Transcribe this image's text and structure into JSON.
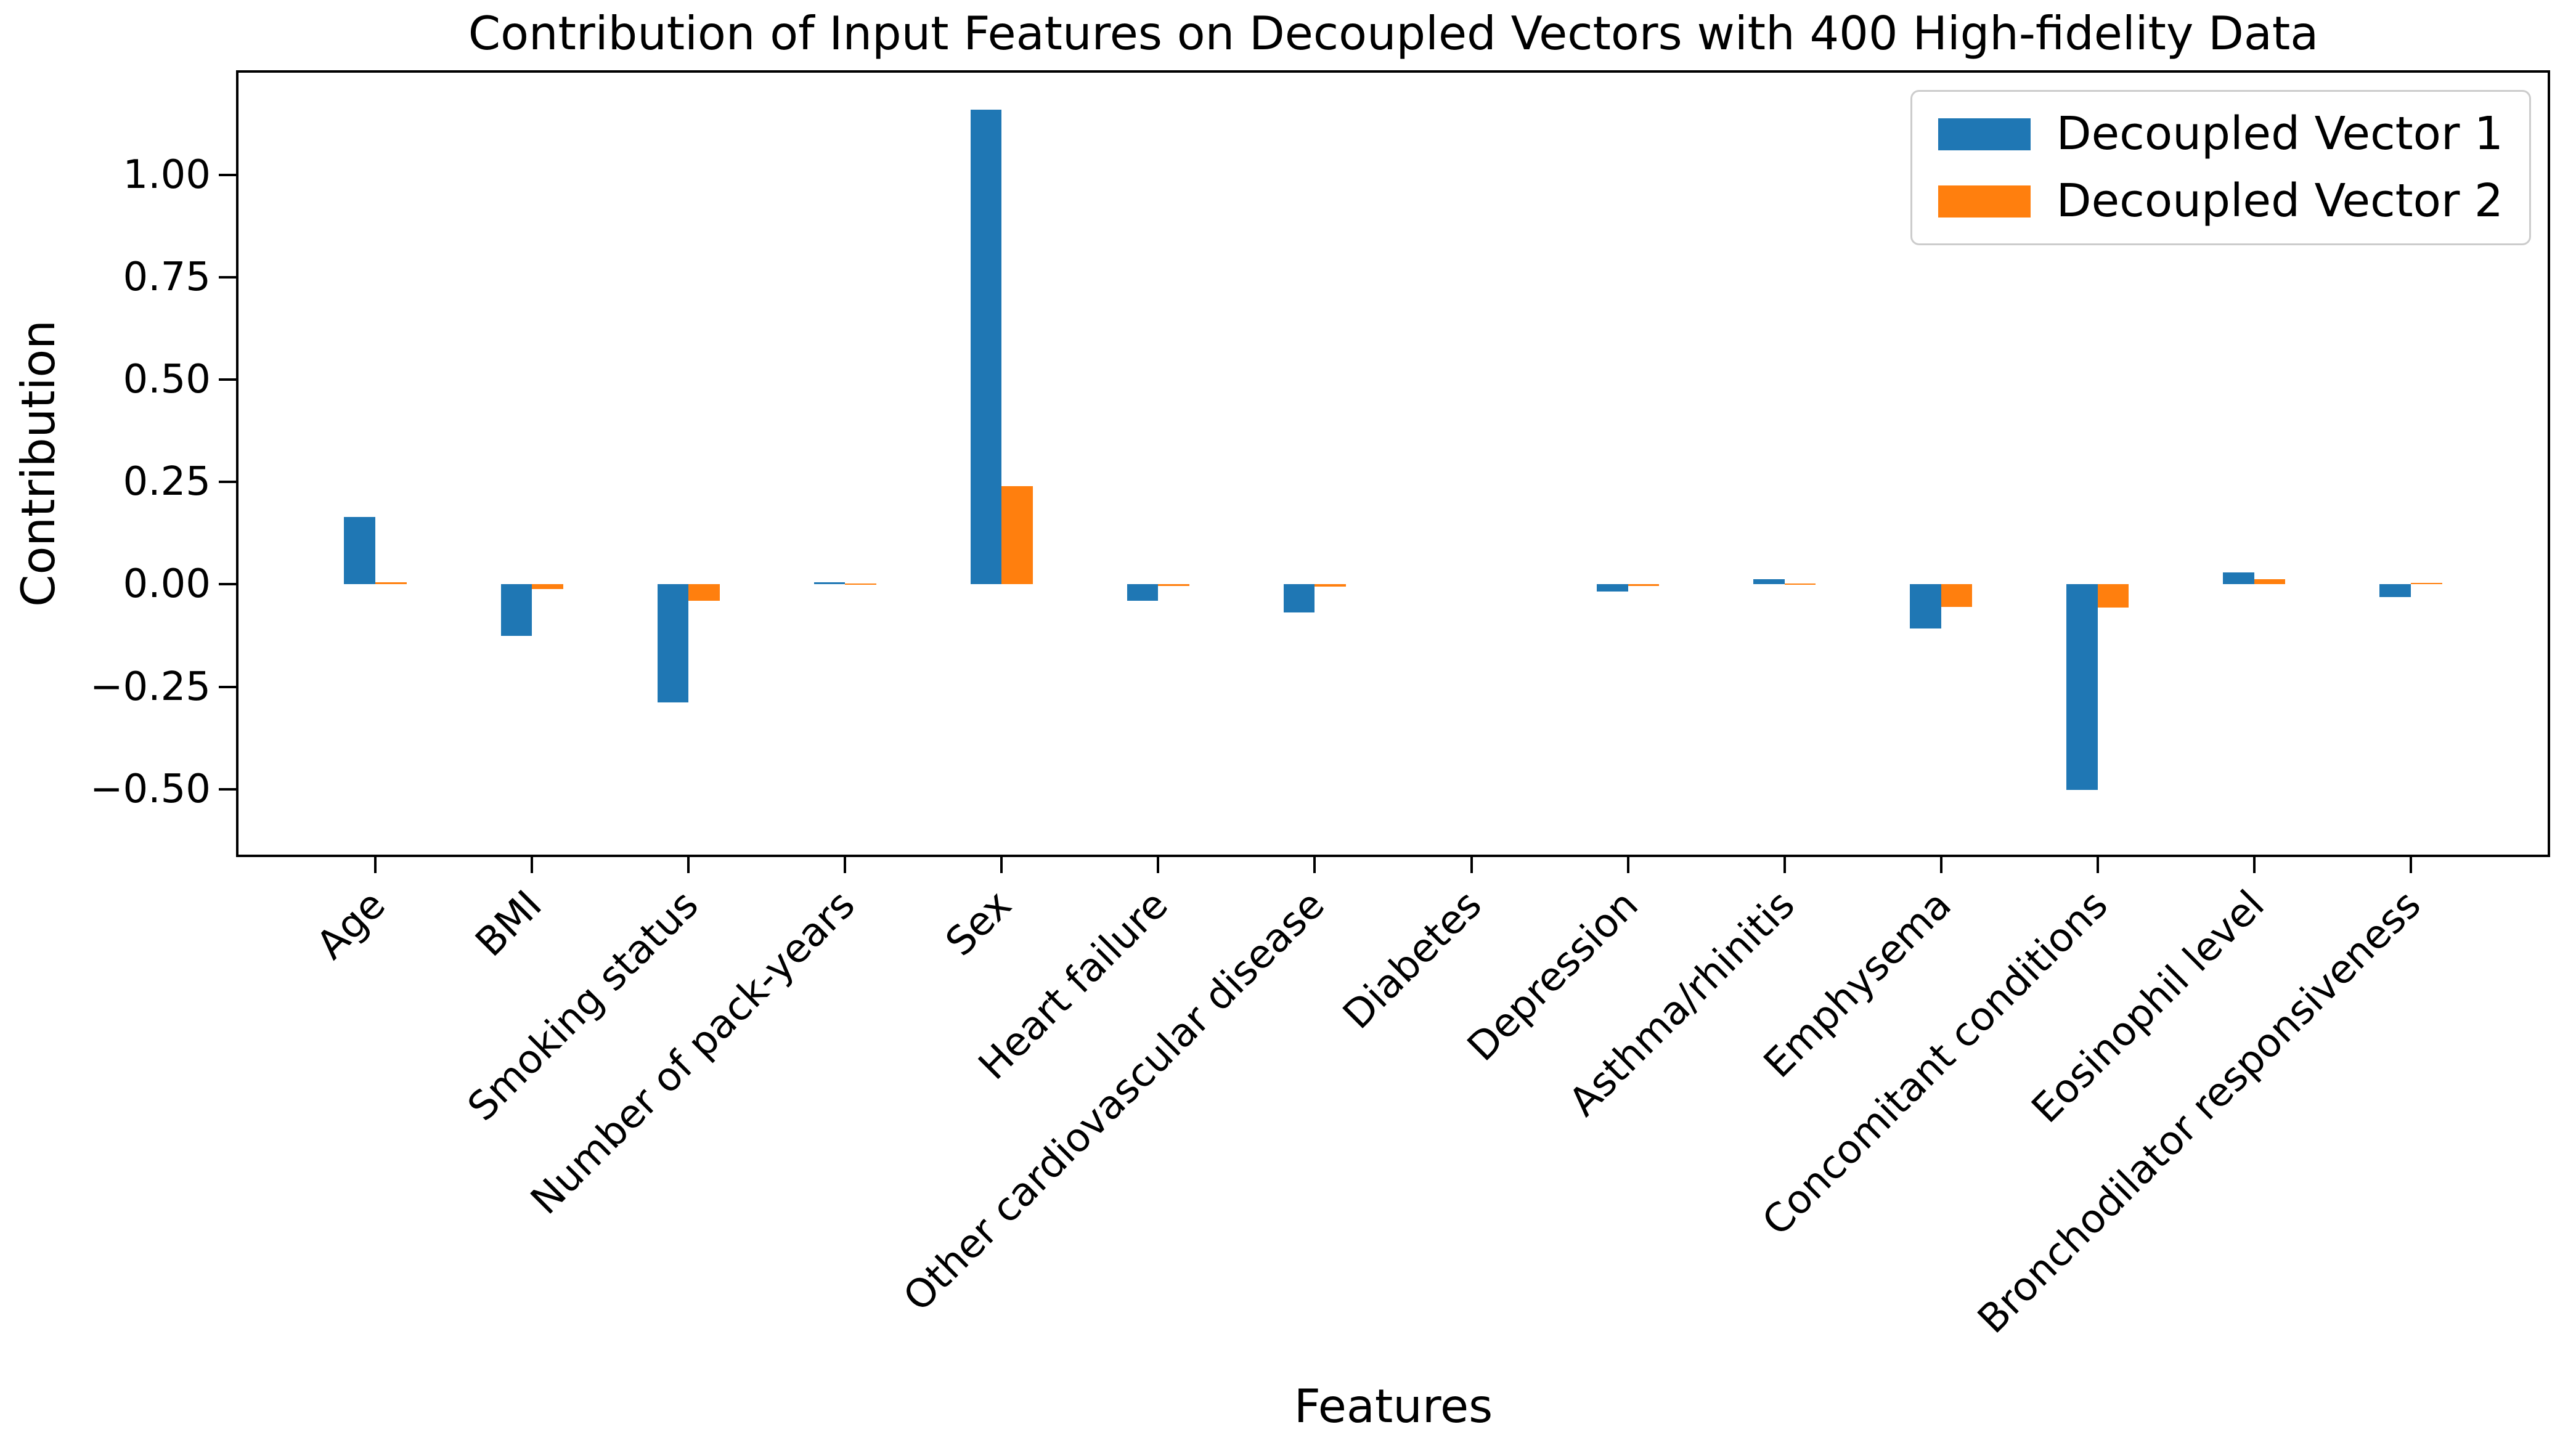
{
  "chart_data": {
    "type": "bar",
    "title": "Contribution of Input Features on Decoupled Vectors with 400 High-fidelity Data",
    "xlabel": "Features",
    "ylabel": "Contribution",
    "categories": [
      "Age",
      "BMI",
      "Smoking status",
      "Number of pack-years",
      "Sex",
      "Heart failure",
      "Other cardiovascular disease",
      "Diabetes",
      "Depression",
      "Asthma/rhinitis",
      "Emphysema",
      "Concomitant conditions",
      "Eosinophil level",
      "Bronchodilator responsiveness"
    ],
    "series": [
      {
        "name": "Decoupled Vector 1",
        "color": "#1f77b4",
        "values": [
          0.165,
          -0.126,
          -0.289,
          0.006,
          1.16,
          -0.04,
          -0.068,
          0,
          -0.017,
          0.013,
          -0.108,
          -0.502,
          0.029,
          -0.031
        ]
      },
      {
        "name": "Decoupled Vector 2",
        "color": "#ff7f0e",
        "values": [
          0.006,
          -0.012,
          -0.04,
          0.002,
          0.24,
          -0.004,
          -0.005,
          0,
          -0.004,
          0.002,
          -0.055,
          -0.057,
          0.013,
          0.004
        ]
      }
    ],
    "ylim": [
      -0.66,
      1.25
    ],
    "yticks": [
      {
        "value": -0.5,
        "label": "−0.50"
      },
      {
        "value": -0.25,
        "label": "−0.25"
      },
      {
        "value": 0,
        "label": "0.00"
      },
      {
        "value": 0.25,
        "label": "0.25"
      },
      {
        "value": 0.5,
        "label": "0.50"
      },
      {
        "value": 0.75,
        "label": "0.75"
      },
      {
        "value": 1.0,
        "label": "1.00"
      }
    ],
    "bar_width": 0.2,
    "group_padding": 0.875,
    "grid": false,
    "legend_position": "upper right"
  }
}
